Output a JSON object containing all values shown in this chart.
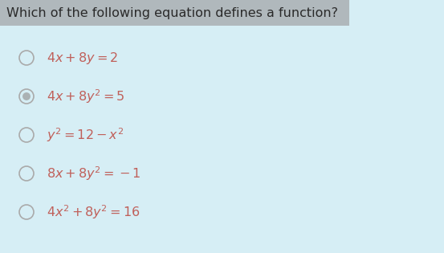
{
  "background_color": "#d6eef5",
  "title_bg_color": "#b0b8bc",
  "title_text": "Which of the following equation defines a function?",
  "title_fontsize": 11.5,
  "title_color": "#2a2a2a",
  "options": [
    {
      "label": "$4x + 8y = 2$",
      "selected": false
    },
    {
      "label": "$4x + 8y^2 = 5$",
      "selected": true
    },
    {
      "label": "$y^2 = 12 - x^2$",
      "selected": false
    },
    {
      "label": "$8x + 8y^2 = -1$",
      "selected": false
    },
    {
      "label": "$4x^2 + 8y^2 = 16$",
      "selected": false
    }
  ],
  "option_color": "#c0605a",
  "option_fontsize": 11.5,
  "circle_color": "#aaaaaa",
  "circle_selected_inner_color": "#999999",
  "fig_width": 5.53,
  "fig_height": 3.15,
  "dpi": 100
}
